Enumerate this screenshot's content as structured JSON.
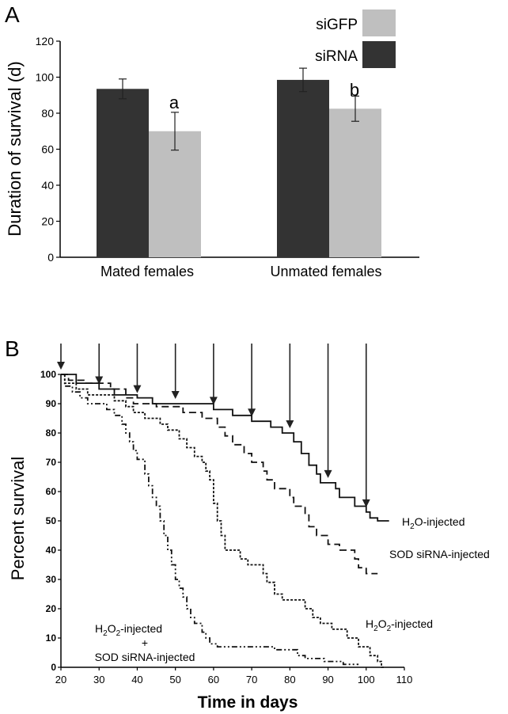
{
  "chart_data": [
    {
      "panel": "A",
      "type": "bar",
      "ylabel": "Duration of survival (d)",
      "ylim": [
        0,
        120
      ],
      "yticks": [
        0,
        20,
        40,
        60,
        80,
        100,
        120
      ],
      "categories": [
        "Mated females",
        "Unmated females"
      ],
      "series": [
        {
          "name": "siRNA",
          "color": "#333333",
          "values": [
            93.5,
            98.5
          ],
          "errors": [
            5.5,
            6.5
          ]
        },
        {
          "name": "siGFP",
          "color": "#bfbfbf",
          "values": [
            70,
            82.5
          ],
          "errors": [
            10.5,
            7
          ]
        }
      ],
      "annotations": [
        "a",
        "b"
      ],
      "legend": {
        "position": "top-right",
        "items": [
          "siGFP",
          "siRNA"
        ]
      }
    },
    {
      "panel": "B",
      "type": "line",
      "xlabel": "Time in days",
      "ylabel": "Percent survival",
      "xlim": [
        20,
        110
      ],
      "ylim": [
        0,
        100
      ],
      "xticks": [
        20,
        30,
        40,
        50,
        60,
        70,
        80,
        90,
        100,
        110
      ],
      "yticks": [
        0,
        10,
        20,
        30,
        40,
        50,
        60,
        70,
        80,
        90,
        100
      ],
      "arrows_at_days": [
        20,
        30,
        40,
        50,
        60,
        70,
        80,
        90,
        100
      ],
      "series": [
        {
          "name": "H2O-injected",
          "label_main": "H",
          "label_sub": "2",
          "label_rest": "O-injected",
          "dash": "none",
          "points": [
            [
              20,
              100
            ],
            [
              24,
              100
            ],
            [
              24,
              97
            ],
            [
              30,
              97
            ],
            [
              30,
              95
            ],
            [
              34,
              95
            ],
            [
              34,
              93
            ],
            [
              40,
              93
            ],
            [
              40,
              92
            ],
            [
              44,
              92
            ],
            [
              44,
              90
            ],
            [
              57,
              90
            ],
            [
              60,
              90
            ],
            [
              60,
              88
            ],
            [
              65,
              88
            ],
            [
              65,
              86
            ],
            [
              70,
              86
            ],
            [
              70,
              84
            ],
            [
              75,
              84
            ],
            [
              75,
              82
            ],
            [
              78,
              82
            ],
            [
              78,
              80
            ],
            [
              81,
              80
            ],
            [
              81,
              77
            ],
            [
              83,
              77
            ],
            [
              83,
              73
            ],
            [
              85,
              73
            ],
            [
              85,
              69
            ],
            [
              87,
              69
            ],
            [
              87,
              66
            ],
            [
              88,
              66
            ],
            [
              88,
              63
            ],
            [
              92,
              63
            ],
            [
              92,
              61
            ],
            [
              93,
              61
            ],
            [
              93,
              58
            ],
            [
              97,
              58
            ],
            [
              97,
              55
            ],
            [
              100,
              55
            ],
            [
              100,
              53
            ],
            [
              101,
              53
            ],
            [
              101,
              51
            ],
            [
              103,
              51
            ],
            [
              103,
              50
            ],
            [
              106,
              50
            ]
          ]
        },
        {
          "name": "SOD siRNA-injected",
          "label_main": "SOD siRNA-injected",
          "dash": "9,5",
          "points": [
            [
              20,
              100
            ],
            [
              22,
              100
            ],
            [
              22,
              98
            ],
            [
              26,
              98
            ],
            [
              26,
              97
            ],
            [
              33,
              97
            ],
            [
              33,
              95
            ],
            [
              37,
              95
            ],
            [
              37,
              92
            ],
            [
              39,
              92
            ],
            [
              39,
              90
            ],
            [
              45,
              90
            ],
            [
              45,
              89
            ],
            [
              52,
              89
            ],
            [
              52,
              87
            ],
            [
              57,
              87
            ],
            [
              57,
              85
            ],
            [
              61,
              85
            ],
            [
              61,
              82
            ],
            [
              63,
              82
            ],
            [
              63,
              79
            ],
            [
              65,
              79
            ],
            [
              65,
              76
            ],
            [
              68,
              76
            ],
            [
              68,
              73
            ],
            [
              70,
              73
            ],
            [
              70,
              70
            ],
            [
              73,
              70
            ],
            [
              73,
              67
            ],
            [
              74,
              67
            ],
            [
              74,
              64
            ],
            [
              76,
              64
            ],
            [
              76,
              61
            ],
            [
              80,
              61
            ],
            [
              80,
              58
            ],
            [
              81,
              58
            ],
            [
              81,
              55
            ],
            [
              84,
              55
            ],
            [
              84,
              52
            ],
            [
              85,
              52
            ],
            [
              85,
              48
            ],
            [
              87,
              48
            ],
            [
              87,
              45
            ],
            [
              90,
              45
            ],
            [
              90,
              42
            ],
            [
              93,
              42
            ],
            [
              93,
              40
            ],
            [
              97,
              40
            ],
            [
              97,
              37
            ],
            [
              98,
              37
            ],
            [
              98,
              34
            ],
            [
              100,
              34
            ],
            [
              100,
              32
            ],
            [
              103,
              32
            ]
          ]
        },
        {
          "name": "H2O2-injected",
          "label_main": "H",
          "label_sub": "2",
          "label_mid": "O",
          "label_sub2": "2",
          "label_rest": "-injected",
          "dash": "3,2",
          "points": [
            [
              20,
              100
            ],
            [
              21,
              100
            ],
            [
              21,
              97
            ],
            [
              24,
              97
            ],
            [
              24,
              95
            ],
            [
              27,
              95
            ],
            [
              27,
              93
            ],
            [
              34,
              93
            ],
            [
              34,
              91
            ],
            [
              37,
              91
            ],
            [
              37,
              89
            ],
            [
              39,
              89
            ],
            [
              39,
              87
            ],
            [
              42,
              87
            ],
            [
              42,
              85
            ],
            [
              46,
              85
            ],
            [
              46,
              83
            ],
            [
              48,
              83
            ],
            [
              48,
              81
            ],
            [
              51,
              81
            ],
            [
              51,
              78
            ],
            [
              53,
              78
            ],
            [
              53,
              75
            ],
            [
              55,
              75
            ],
            [
              55,
              72
            ],
            [
              57,
              72
            ],
            [
              57,
              70
            ],
            [
              58,
              70
            ],
            [
              58,
              67
            ],
            [
              59,
              67
            ],
            [
              59,
              64
            ],
            [
              60,
              64
            ],
            [
              60,
              56
            ],
            [
              61,
              56
            ],
            [
              61,
              50
            ],
            [
              62,
              50
            ],
            [
              62,
              45
            ],
            [
              63,
              45
            ],
            [
              63,
              40
            ],
            [
              67,
              40
            ],
            [
              67,
              37
            ],
            [
              69,
              37
            ],
            [
              69,
              35
            ],
            [
              73,
              35
            ],
            [
              73,
              32
            ],
            [
              74,
              32
            ],
            [
              74,
              29
            ],
            [
              76,
              29
            ],
            [
              76,
              25
            ],
            [
              78,
              25
            ],
            [
              78,
              23
            ],
            [
              84,
              23
            ],
            [
              84,
              20
            ],
            [
              86,
              20
            ],
            [
              86,
              17
            ],
            [
              88,
              17
            ],
            [
              88,
              15
            ],
            [
              91,
              15
            ],
            [
              91,
              13
            ],
            [
              95,
              13
            ],
            [
              95,
              10
            ],
            [
              98,
              10
            ],
            [
              98,
              7
            ],
            [
              101,
              7
            ],
            [
              101,
              4
            ],
            [
              103,
              4
            ],
            [
              103,
              2
            ],
            [
              104,
              2
            ],
            [
              104,
              0
            ],
            [
              105,
              0
            ]
          ]
        },
        {
          "name": "H2O2-injected + SOD siRNA-injected",
          "label_lines": [
            "H2O2-injected",
            "+",
            "SOD siRNA-injected"
          ],
          "dash": "7,3,2,3,2,3",
          "points": [
            [
              20,
              100
            ],
            [
              21,
              100
            ],
            [
              21,
              96
            ],
            [
              23,
              96
            ],
            [
              23,
              94
            ],
            [
              25,
              94
            ],
            [
              25,
              92
            ],
            [
              27,
              92
            ],
            [
              27,
              90
            ],
            [
              32,
              90
            ],
            [
              32,
              88
            ],
            [
              34,
              88
            ],
            [
              34,
              86
            ],
            [
              36,
              86
            ],
            [
              36,
              83
            ],
            [
              37,
              83
            ],
            [
              37,
              80
            ],
            [
              38,
              80
            ],
            [
              38,
              77
            ],
            [
              39,
              77
            ],
            [
              39,
              74
            ],
            [
              40,
              74
            ],
            [
              40,
              71
            ],
            [
              42,
              71
            ],
            [
              42,
              66
            ],
            [
              43,
              66
            ],
            [
              43,
              62
            ],
            [
              44,
              62
            ],
            [
              44,
              58
            ],
            [
              45,
              58
            ],
            [
              45,
              55
            ],
            [
              46,
              55
            ],
            [
              46,
              50
            ],
            [
              47,
              50
            ],
            [
              47,
              45
            ],
            [
              48,
              45
            ],
            [
              48,
              40
            ],
            [
              49,
              40
            ],
            [
              49,
              35
            ],
            [
              50,
              35
            ],
            [
              50,
              30
            ],
            [
              51,
              30
            ],
            [
              51,
              27
            ],
            [
              52,
              27
            ],
            [
              52,
              24
            ],
            [
              53,
              24
            ],
            [
              53,
              20
            ],
            [
              54,
              20
            ],
            [
              54,
              17
            ],
            [
              55,
              17
            ],
            [
              55,
              15
            ],
            [
              57,
              15
            ],
            [
              57,
              12
            ],
            [
              58,
              12
            ],
            [
              58,
              10
            ],
            [
              59,
              10
            ],
            [
              59,
              8
            ],
            [
              61,
              8
            ],
            [
              61,
              7
            ],
            [
              76,
              7
            ],
            [
              76,
              6
            ],
            [
              82,
              6
            ],
            [
              82,
              4
            ],
            [
              84,
              4
            ],
            [
              84,
              3
            ],
            [
              89,
              3
            ],
            [
              89,
              2
            ],
            [
              94,
              2
            ],
            [
              94,
              1
            ],
            [
              98,
              1
            ]
          ]
        }
      ]
    }
  ],
  "labels": {
    "panel_a": "A",
    "panel_b": "B",
    "a_annot_a": "a",
    "a_annot_b": "b",
    "b_xlabel": "Time in days",
    "b_ylabel": "Percent survival",
    "a_ylabel": "Duration of survival (d)",
    "legend_sigfp": "siGFP",
    "legend_sirna": "siRNA",
    "cat_mated": "Mated females",
    "cat_unmated": "Unmated females",
    "label_sod": "SOD siRNA-injected",
    "label_combo_plus": "+",
    "label_combo_sod": "SOD siRNA-injected"
  }
}
